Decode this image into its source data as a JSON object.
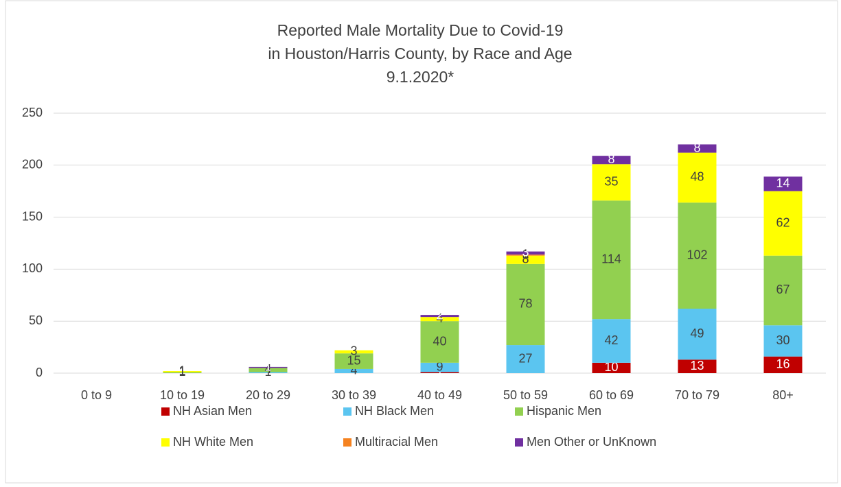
{
  "chart_data": {
    "type": "stacked-bar",
    "title": [
      "Reported Male Mortality Due to Covid-19",
      "in Houston/Harris County, by Race and Age",
      "9.1.2020*"
    ],
    "categories": [
      "0 to 9",
      "10 to 19",
      "20 to 29",
      "30 to 39",
      "40 to 49",
      "50 to 59",
      "60 to 69",
      "70 to 79",
      "80+"
    ],
    "series": [
      {
        "name": "NH Asian Men",
        "color": "#c00000",
        "values": [
          0,
          0,
          0,
          0,
          1,
          0,
          10,
          13,
          16
        ]
      },
      {
        "name": "NH Black Men",
        "color": "#5bc5f0",
        "values": [
          0,
          0,
          1,
          4,
          9,
          27,
          42,
          49,
          30
        ]
      },
      {
        "name": "Hispanic Men",
        "color": "#92d050",
        "values": [
          0,
          1,
          4,
          15,
          40,
          78,
          114,
          102,
          67
        ]
      },
      {
        "name": "NH White Men",
        "color": "#ffff00",
        "values": [
          0,
          1,
          0,
          3,
          4,
          8,
          35,
          48,
          62
        ]
      },
      {
        "name": "Multiracial Men",
        "color": "#f58220",
        "values": [
          0,
          0,
          0,
          0,
          0,
          1,
          0,
          0,
          0
        ]
      },
      {
        "name": "Men Other or UnKnown",
        "color": "#7030a0",
        "values": [
          0,
          0,
          1,
          0,
          2,
          3,
          8,
          8,
          14
        ]
      }
    ],
    "ylim": [
      0,
      250
    ],
    "yticks": [
      0,
      50,
      100,
      150,
      200,
      250
    ],
    "grid": true
  }
}
